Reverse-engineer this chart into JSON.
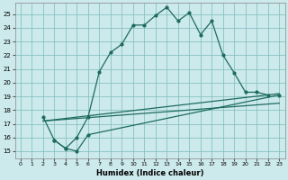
{
  "xlabel": "Humidex (Indice chaleur)",
  "ylabel": "",
  "xlim": [
    -0.5,
    23.5
  ],
  "ylim": [
    14.5,
    25.8
  ],
  "yticks": [
    15,
    16,
    17,
    18,
    19,
    20,
    21,
    22,
    23,
    24,
    25
  ],
  "xticks": [
    0,
    1,
    2,
    3,
    4,
    5,
    6,
    7,
    8,
    9,
    10,
    11,
    12,
    13,
    14,
    15,
    16,
    17,
    18,
    19,
    20,
    21,
    22,
    23
  ],
  "bg_color": "#cce9ec",
  "grid_color": "#7bbcba",
  "line_color": "#1e6b5e",
  "line1_x": [
    2,
    3,
    4,
    5,
    6,
    7,
    8,
    9,
    10,
    11,
    12,
    13,
    14,
    15,
    16,
    17,
    18,
    19,
    20,
    21,
    22
  ],
  "line1_y": [
    17.5,
    15.8,
    15.2,
    16.0,
    17.5,
    20.8,
    22.2,
    22.8,
    24.2,
    24.2,
    24.9,
    25.5,
    24.5,
    25.1,
    23.5,
    24.5,
    22.0,
    20.7,
    19.3,
    19.3,
    19.1
  ],
  "line2_x": [
    2,
    23
  ],
  "line2_y": [
    17.2,
    19.2
  ],
  "line3_x": [
    2,
    23
  ],
  "line3_y": [
    17.2,
    18.5
  ],
  "line4_x": [
    3,
    4,
    5,
    6,
    23
  ],
  "line4_y": [
    15.8,
    15.2,
    15.0,
    16.2,
    19.1
  ]
}
